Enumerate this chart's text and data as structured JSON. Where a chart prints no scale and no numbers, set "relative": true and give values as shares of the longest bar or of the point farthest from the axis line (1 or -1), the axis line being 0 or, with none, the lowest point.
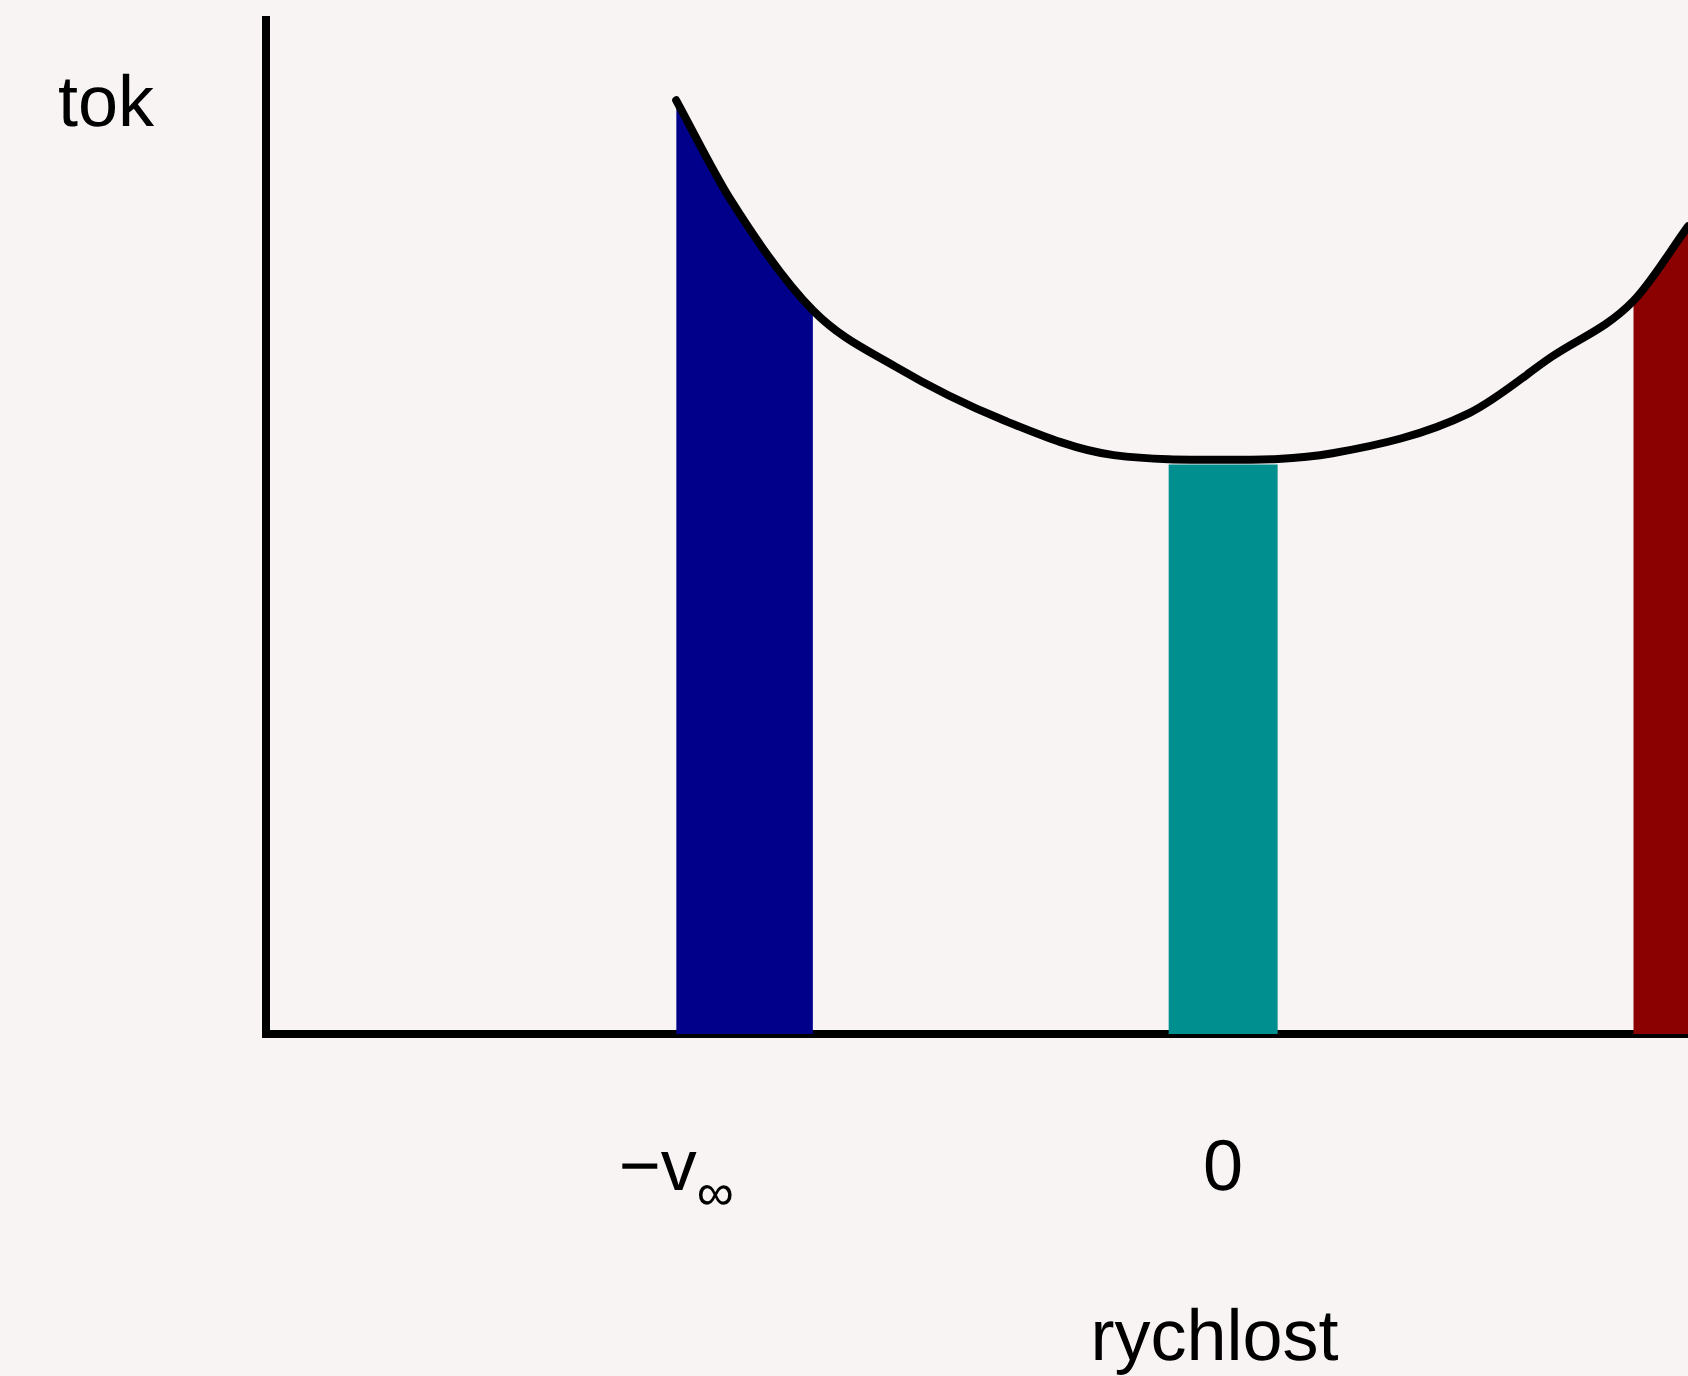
{
  "chart_data": {
    "type": "line",
    "relative": true,
    "xlabel": "rychlost",
    "ylabel": "tok",
    "categories": [
      null,
      null,
      null,
      null,
      null,
      null,
      null,
      null,
      null,
      null,
      null,
      null,
      null,
      null,
      null,
      "−v$_{∞}$",
      null,
      null,
      null,
      null,
      null,
      null,
      null,
      null,
      null,
      null,
      null,
      null,
      null,
      null,
      null,
      null,
      null,
      null,
      null,
      "0",
      null,
      null,
      null,
      null,
      null,
      null,
      null,
      null,
      null,
      null,
      null,
      null,
      null,
      null,
      null,
      null,
      null
    ],
    "tick_labels": "x",
    "marker": "none",
    "line_style": "solid",
    "series": [
      {
        "type": "area",
        "color": "#00008b",
        "values": [
          null,
          null,
          null,
          null,
          null,
          null,
          null,
          null,
          null,
          null,
          null,
          null,
          null,
          null,
          null,
          1.0,
          null,
          0.893,
          null,
          null,
          0.775,
          null,
          null,
          null,
          null,
          null,
          null,
          null,
          null,
          null,
          null,
          null,
          null,
          null,
          null,
          null,
          null,
          null,
          null,
          null,
          null,
          null,
          null,
          null,
          null,
          null,
          null,
          null,
          null,
          null,
          null,
          null,
          null
        ]
      },
      {
        "type": "area",
        "color": "#008f8f",
        "values": [
          null,
          null,
          null,
          null,
          null,
          null,
          null,
          null,
          null,
          null,
          null,
          null,
          null,
          null,
          null,
          null,
          null,
          null,
          null,
          null,
          null,
          null,
          null,
          null,
          null,
          null,
          null,
          null,
          null,
          null,
          null,
          null,
          null,
          0.61,
          null,
          null,
          null,
          0.61,
          null,
          null,
          null,
          null,
          null,
          null,
          null,
          null,
          null,
          null,
          null,
          null,
          null,
          null,
          null
        ]
      },
      {
        "type": "area",
        "color": "#8b0000",
        "values": [
          null,
          null,
          null,
          null,
          null,
          null,
          null,
          null,
          null,
          null,
          null,
          null,
          null,
          null,
          null,
          null,
          null,
          null,
          null,
          null,
          null,
          null,
          null,
          null,
          null,
          null,
          null,
          null,
          null,
          null,
          null,
          null,
          null,
          null,
          null,
          null,
          null,
          null,
          null,
          null,
          null,
          null,
          null,
          null,
          null,
          null,
          null,
          null,
          null,
          null,
          0.785,
          null,
          0.865
        ]
      },
      {
        "color": "#000000",
        "values": [
          null,
          null,
          null,
          null,
          null,
          null,
          null,
          null,
          null,
          null,
          null,
          null,
          null,
          null,
          null,
          1.0,
          null,
          0.893,
          null,
          null,
          0.775,
          null,
          null,
          0.715,
          null,
          null,
          null,
          0.657,
          null,
          null,
          null,
          0.62,
          null,
          null,
          null,
          0.615,
          null,
          null,
          null,
          0.622,
          null,
          null,
          null,
          null,
          0.665,
          null,
          null,
          0.725,
          null,
          null,
          0.785,
          null,
          0.865
        ]
      }
    ]
  }
}
